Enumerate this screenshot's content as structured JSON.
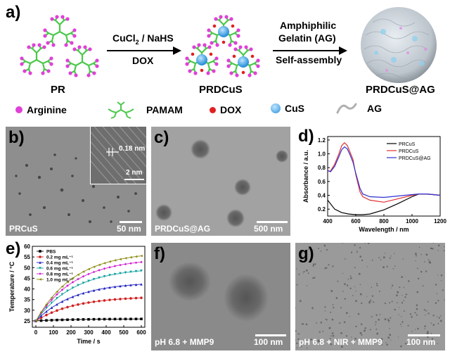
{
  "panel_a": {
    "letter": "a)",
    "step1_top": "CuCl",
    "step1_sub": "2",
    "step1_rest": " / NaHS",
    "step1_bottom": "DOX",
    "step2_line1": "Amphiphilic",
    "step2_line2": "Gelatin (AG)",
    "step2_line3": "Self-assembly",
    "label_pr": "PR",
    "label_prdcus": "PRDCuS",
    "label_prdcus_ag": "PRDCuS@AG",
    "legend": {
      "arginine": "Arginine",
      "pamam": "PAMAM",
      "dox": "DOX",
      "cus": "CuS",
      "ag": "AG"
    },
    "colors": {
      "arginine": "#e040d8",
      "pamam": "#4cc84c",
      "dox": "#e02020",
      "cus": "#3aa8e8",
      "ag": "#b8b8b8"
    }
  },
  "panel_b": {
    "letter": "b)",
    "label": "PRCuS",
    "scalebar": "50 nm",
    "inset_spacing": "0.18 nm",
    "inset_scalebar": "2 nm"
  },
  "panel_c": {
    "letter": "c)",
    "label": "PRDCuS@AG",
    "scalebar": "500 nm"
  },
  "panel_d": {
    "letter": "d)",
    "chart_data": {
      "type": "line",
      "xlabel": "Wavelength / nm",
      "ylabel": "Absorbance / a.u.",
      "xlim": [
        400,
        1200
      ],
      "ylim": [
        0.1,
        1.25
      ],
      "xticks": [
        400,
        600,
        800,
        1000,
        1200
      ],
      "yticks": [
        0.2,
        0.4,
        0.6,
        0.8,
        1.0,
        1.2
      ],
      "legend_position": "top-right",
      "series": [
        {
          "name": "PRCuS",
          "color": "#000000",
          "x": [
            400,
            450,
            500,
            550,
            600,
            650,
            700,
            800,
            900,
            1000,
            1050,
            1100,
            1150,
            1200
          ],
          "y": [
            0.33,
            0.2,
            0.15,
            0.13,
            0.12,
            0.12,
            0.13,
            0.19,
            0.28,
            0.38,
            0.42,
            0.42,
            0.41,
            0.4
          ]
        },
        {
          "name": "PRDCuS",
          "color": "#e03030",
          "x": [
            400,
            420,
            450,
            480,
            500,
            520,
            540,
            560,
            580,
            600,
            630,
            650,
            700,
            800,
            900,
            1000,
            1050,
            1100,
            1150,
            1200
          ],
          "y": [
            0.75,
            0.75,
            0.85,
            1.0,
            1.12,
            1.16,
            1.12,
            1.02,
            0.92,
            0.7,
            0.45,
            0.38,
            0.33,
            0.3,
            0.35,
            0.4,
            0.42,
            0.42,
            0.41,
            0.4
          ]
        },
        {
          "name": "PRDCuS@AG",
          "color": "#3030d0",
          "x": [
            400,
            420,
            450,
            480,
            500,
            520,
            540,
            560,
            580,
            600,
            630,
            650,
            700,
            800,
            900,
            1000,
            1050,
            1100,
            1150,
            1200
          ],
          "y": [
            0.76,
            0.74,
            0.82,
            0.96,
            1.06,
            1.1,
            1.07,
            0.98,
            0.88,
            0.72,
            0.5,
            0.42,
            0.38,
            0.37,
            0.39,
            0.41,
            0.42,
            0.42,
            0.41,
            0.4
          ]
        }
      ]
    }
  },
  "panel_e": {
    "letter": "e)",
    "chart_data": {
      "type": "line",
      "xlabel": "Time / s",
      "ylabel": "Temperature / °C",
      "xlim": [
        -20,
        620
      ],
      "ylim": [
        22,
        60
      ],
      "xticks": [
        0,
        100,
        200,
        300,
        400,
        500,
        600
      ],
      "yticks": [
        25,
        30,
        35,
        40,
        45,
        50,
        55,
        60
      ],
      "legend_position": "top-left",
      "x": [
        0,
        30,
        60,
        90,
        120,
        150,
        180,
        210,
        240,
        270,
        300,
        330,
        360,
        390,
        420,
        450,
        480,
        510,
        540,
        570,
        600
      ],
      "series": [
        {
          "name": "PBS",
          "color": "#000000",
          "marker": "square",
          "plateau": 25.9
        },
        {
          "name": "0.2 mg mL⁻¹",
          "color": "#d02020",
          "marker": "circle",
          "plateau": 35.8
        },
        {
          "name": "0.4 mg mL⁻¹",
          "color": "#2020c0",
          "marker": "triangle",
          "plateau": 42.2
        },
        {
          "name": "0.6 mg mL⁻¹",
          "color": "#10a0a0",
          "marker": "triangle-down",
          "plateau": 48.5
        },
        {
          "name": "0.8 mg mL⁻¹",
          "color": "#d020d0",
          "marker": "diamond",
          "plateau": 52.6
        },
        {
          "name": "1.0 mg mL⁻¹",
          "color": "#8a8a10",
          "marker": "triangle-left",
          "plateau": 55.5
        }
      ]
    }
  },
  "panel_f": {
    "letter": "f)",
    "label": "pH 6.8 + MMP9",
    "scalebar": "100 nm"
  },
  "panel_g": {
    "letter": "g)",
    "label": "pH 6.8 + NIR + MMP9",
    "scalebar": "100 nm"
  }
}
